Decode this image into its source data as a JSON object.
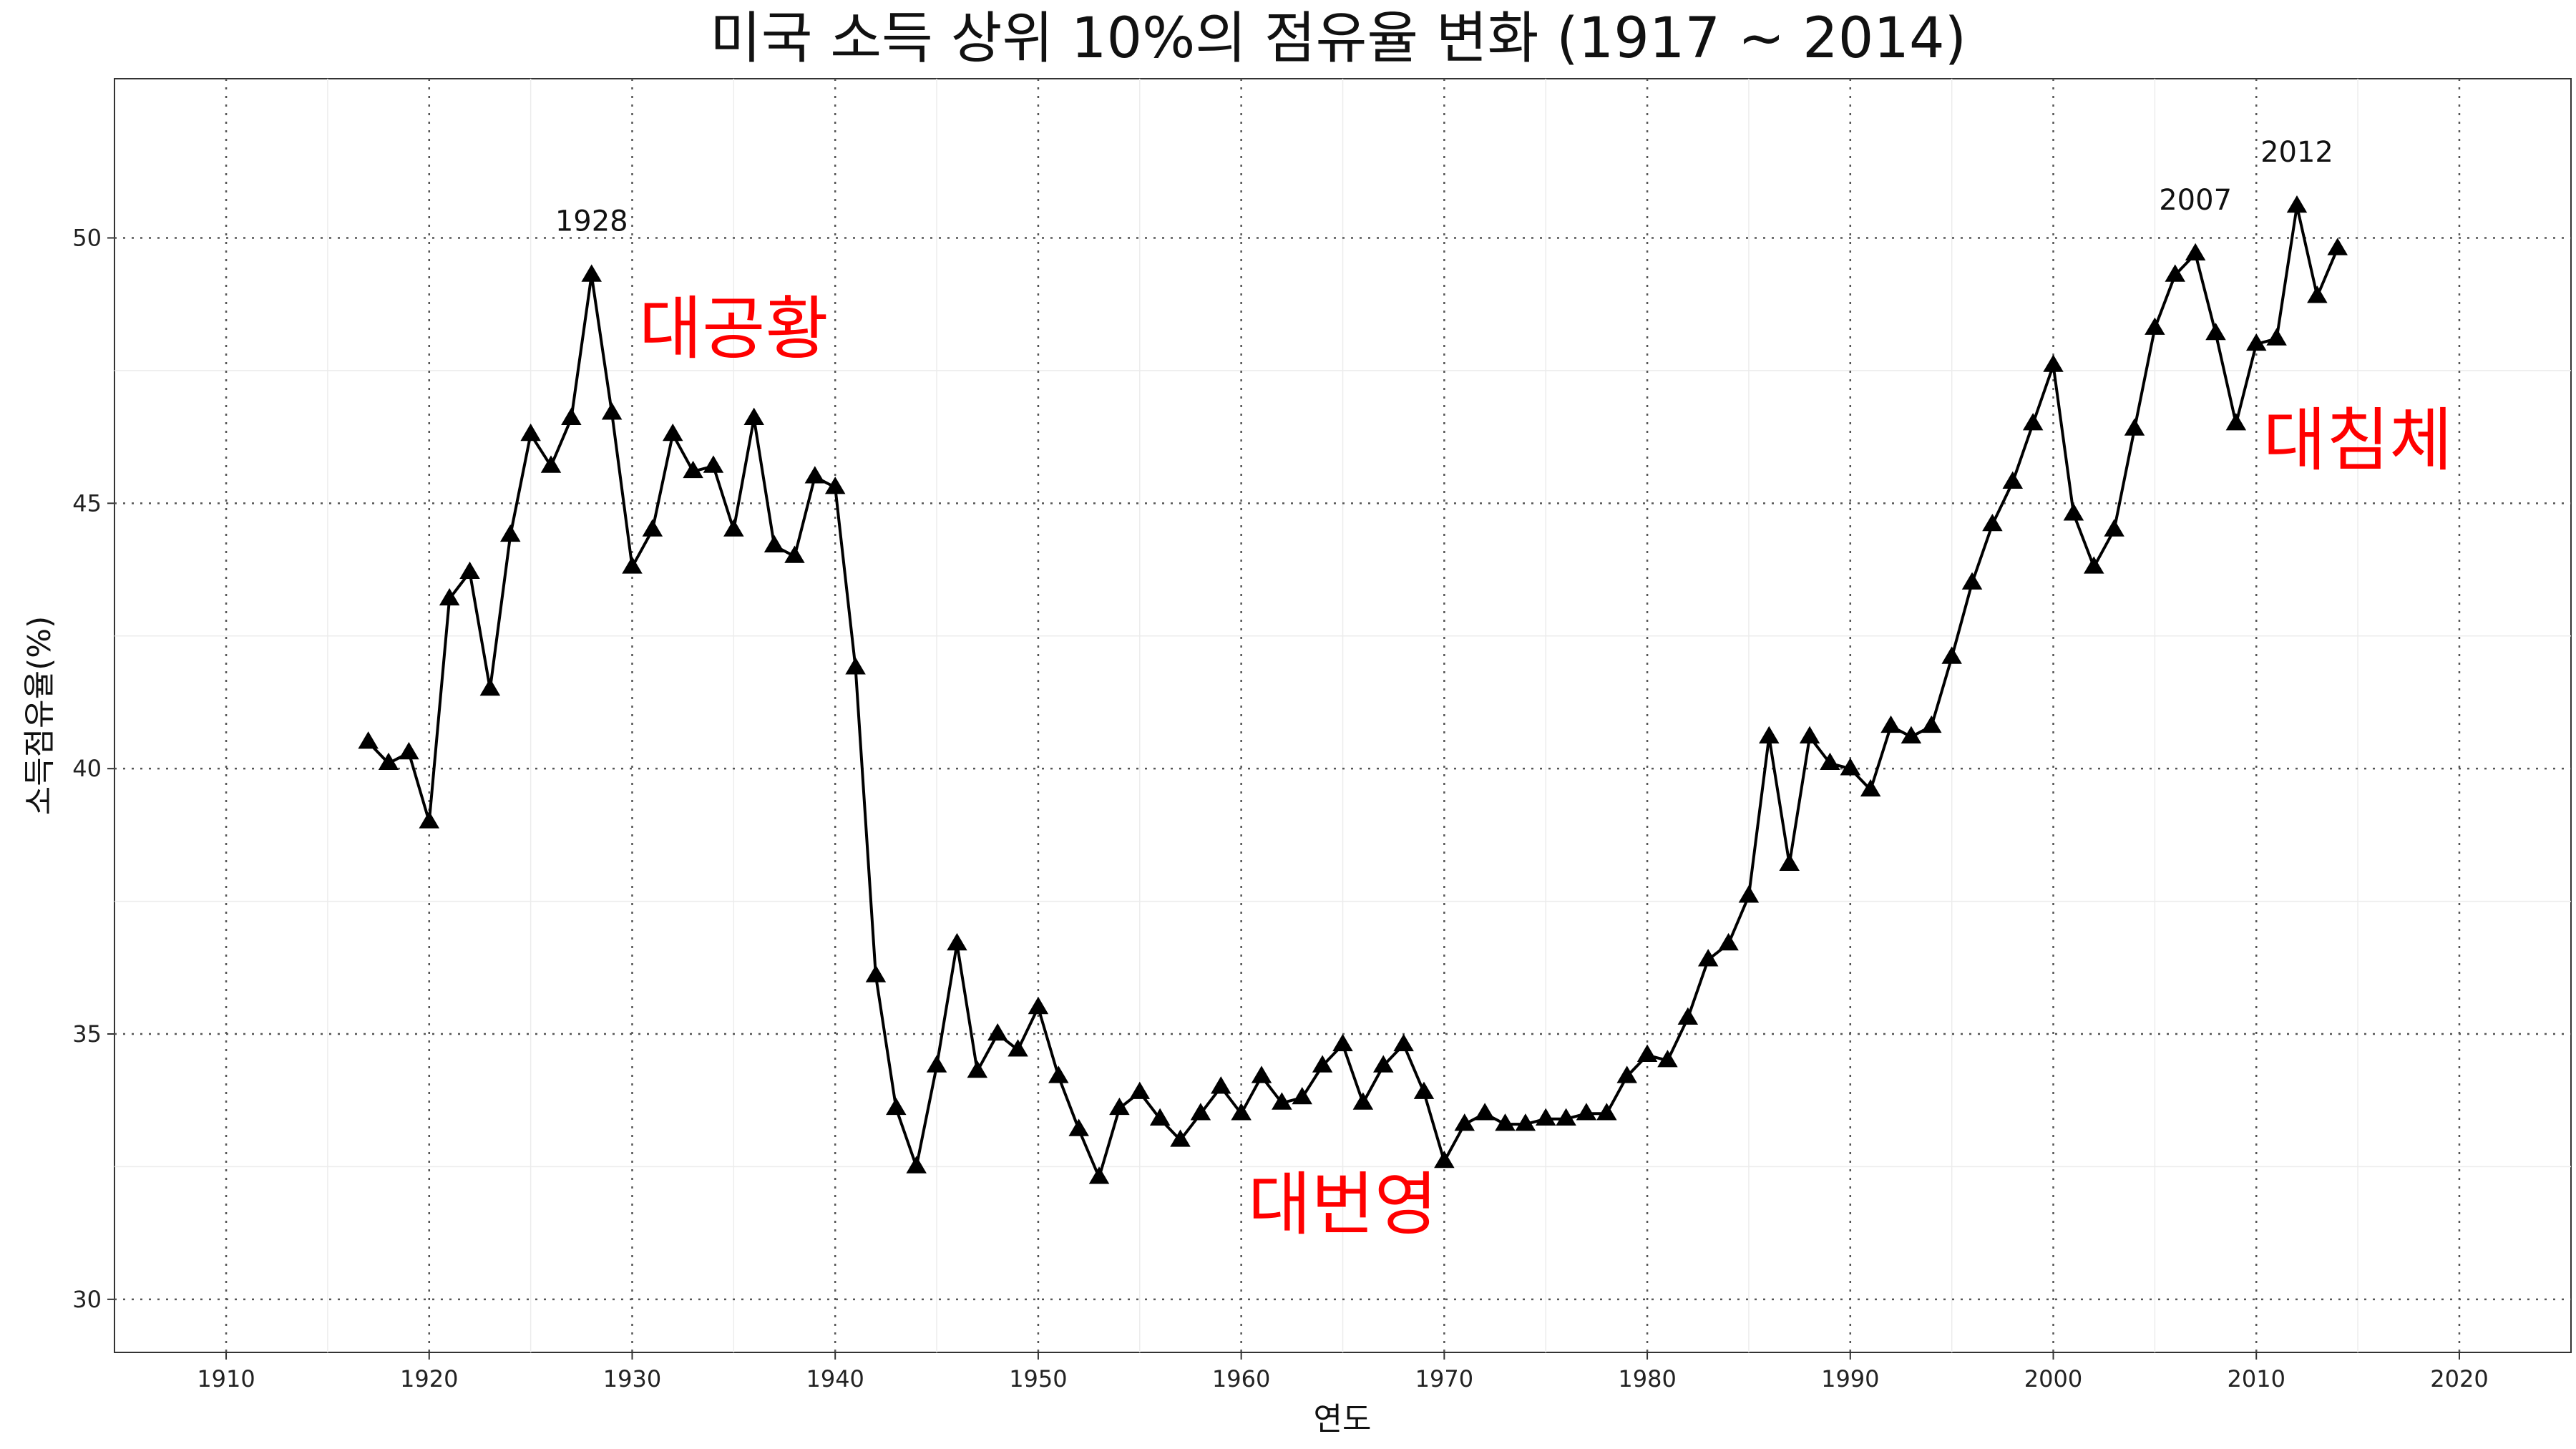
{
  "chart_data": {
    "type": "line",
    "title": "미국 소득 상위 10%의 점유율 변화 (1917 ~ 2014)",
    "xlabel": "연도",
    "ylabel": "소득점유율(%)",
    "xlim": [
      1904.5,
      2025.5
    ],
    "ylim": [
      29,
      53
    ],
    "x_ticks": [
      1910,
      1920,
      1930,
      1940,
      1950,
      1960,
      1970,
      1980,
      1990,
      2000,
      2010,
      2020
    ],
    "y_ticks": [
      30,
      35,
      40,
      45,
      50
    ],
    "grid": true,
    "marker": "triangle",
    "line_color": "#000000",
    "annotation_color": "#ff0000",
    "series": [
      {
        "x": [
          1917,
          1918,
          1919,
          1920,
          1921,
          1922,
          1923,
          1924,
          1925,
          1926,
          1927,
          1928,
          1929,
          1930,
          1931,
          1932,
          1933,
          1934,
          1935,
          1936,
          1937,
          1938,
          1939,
          1940,
          1941,
          1942,
          1943,
          1944,
          1945,
          1946,
          1947,
          1948,
          1949,
          1950,
          1951,
          1952,
          1953,
          1954,
          1955,
          1956,
          1957,
          1958,
          1959,
          1960,
          1961,
          1962,
          1963,
          1964,
          1965,
          1966,
          1967,
          1968,
          1969,
          1970,
          1971,
          1972,
          1973,
          1974,
          1975,
          1976,
          1977,
          1978,
          1979,
          1980,
          1981,
          1982,
          1983,
          1984,
          1985,
          1986,
          1987,
          1988,
          1989,
          1990,
          1991,
          1992,
          1993,
          1994,
          1995,
          1996,
          1997,
          1998,
          1999,
          2000,
          2001,
          2002,
          2003,
          2004,
          2005,
          2006,
          2007,
          2008,
          2009,
          2010,
          2011,
          2012,
          2013,
          2014
        ],
        "y": [
          40.5,
          40.1,
          40.3,
          39.0,
          43.2,
          43.7,
          41.5,
          44.4,
          46.3,
          45.7,
          46.6,
          49.3,
          46.7,
          43.8,
          44.5,
          46.3,
          45.6,
          45.7,
          44.5,
          46.6,
          44.2,
          44.0,
          45.5,
          45.3,
          41.9,
          36.1,
          33.6,
          32.5,
          34.4,
          36.7,
          34.3,
          35.0,
          34.7,
          35.5,
          34.2,
          33.2,
          32.3,
          33.6,
          33.9,
          33.4,
          33.0,
          33.5,
          34.0,
          33.5,
          34.2,
          33.7,
          33.8,
          34.4,
          34.8,
          33.7,
          34.4,
          34.8,
          33.9,
          32.6,
          33.3,
          33.5,
          33.3,
          33.3,
          33.4,
          33.4,
          33.5,
          33.5,
          34.2,
          34.6,
          34.5,
          35.3,
          36.4,
          36.7,
          37.6,
          40.6,
          38.2,
          40.6,
          40.1,
          40.0,
          39.6,
          40.8,
          40.6,
          40.8,
          42.1,
          43.5,
          44.6,
          45.4,
          46.5,
          47.6,
          44.8,
          43.8,
          44.5,
          46.4,
          48.3,
          49.3,
          49.7,
          48.2,
          46.5,
          48.0,
          48.1,
          50.6,
          48.9,
          49.8
        ]
      }
    ],
    "point_labels": [
      {
        "x": 1928,
        "y": 49.3,
        "text": "1928"
      },
      {
        "x": 2007,
        "y": 49.7,
        "text": "2007"
      },
      {
        "x": 2012,
        "y": 50.6,
        "text": "2012"
      }
    ],
    "annotations": [
      {
        "x": 1935,
        "y": 48.3,
        "text": "대공황"
      },
      {
        "x": 1965,
        "y": 31.8,
        "text": "대번영"
      },
      {
        "x": 2015,
        "y": 46.2,
        "text": "대침체"
      }
    ]
  }
}
